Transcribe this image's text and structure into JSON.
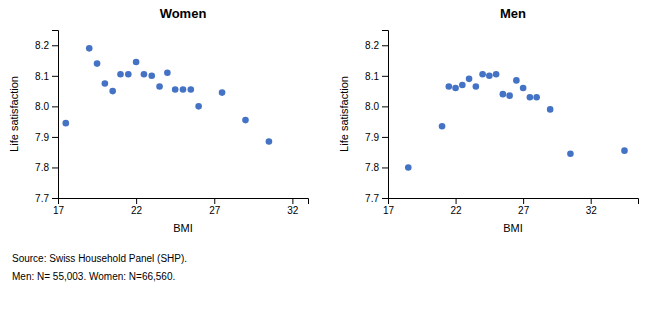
{
  "chart_data": [
    {
      "type": "scatter",
      "title": "Women",
      "xlabel": "BMI",
      "ylabel": "Life satisfaction",
      "x": [
        17.5,
        19.0,
        19.5,
        20.0,
        20.5,
        21.0,
        21.5,
        22.0,
        22.5,
        23.0,
        23.5,
        24.0,
        24.5,
        25.0,
        25.5,
        26.0,
        27.5,
        29.0,
        30.5
      ],
      "values": [
        7.945,
        8.19,
        8.14,
        8.075,
        8.05,
        8.105,
        8.105,
        8.145,
        8.105,
        8.1,
        8.065,
        8.11,
        8.055,
        8.055,
        8.055,
        8.0,
        8.045,
        7.955,
        7.885
      ],
      "color": "#4472C4",
      "xlim": [
        17,
        33
      ],
      "xticks": [
        17,
        22,
        27,
        32
      ],
      "ylim": [
        7.7,
        8.25
      ],
      "yticks": [
        7.7,
        7.8,
        7.9,
        {
          "value": 8.0,
          "label": "8.0"
        },
        8.1,
        8.2
      ],
      "annotations": [
        "Source: Swiss Household Panel (SHP).",
        "Men: N= 55,003. Women: N=66,560."
      ]
    },
    {
      "type": "scatter",
      "title": "Men",
      "xlabel": "BMI",
      "ylabel": "Life satisfaction",
      "x": [
        18.5,
        21.0,
        21.5,
        22.0,
        22.5,
        23.0,
        23.5,
        24.0,
        24.5,
        25.0,
        25.5,
        26.0,
        26.5,
        27.0,
        27.5,
        28.0,
        29.0,
        30.5,
        34.5
      ],
      "values": [
        7.8,
        7.935,
        8.065,
        8.06,
        8.07,
        8.09,
        8.065,
        8.105,
        8.1,
        8.105,
        8.04,
        8.035,
        8.085,
        8.06,
        8.03,
        8.03,
        7.99,
        7.845,
        7.855
      ],
      "color": "#4472C4",
      "xlim": [
        17,
        35.5
      ],
      "xticks": [
        17,
        22,
        27,
        32
      ],
      "ylim": [
        7.7,
        8.25
      ],
      "yticks": [
        7.7,
        7.8,
        7.9,
        {
          "value": 8.0,
          "label": "8.0"
        },
        8.1,
        8.2
      ]
    }
  ]
}
